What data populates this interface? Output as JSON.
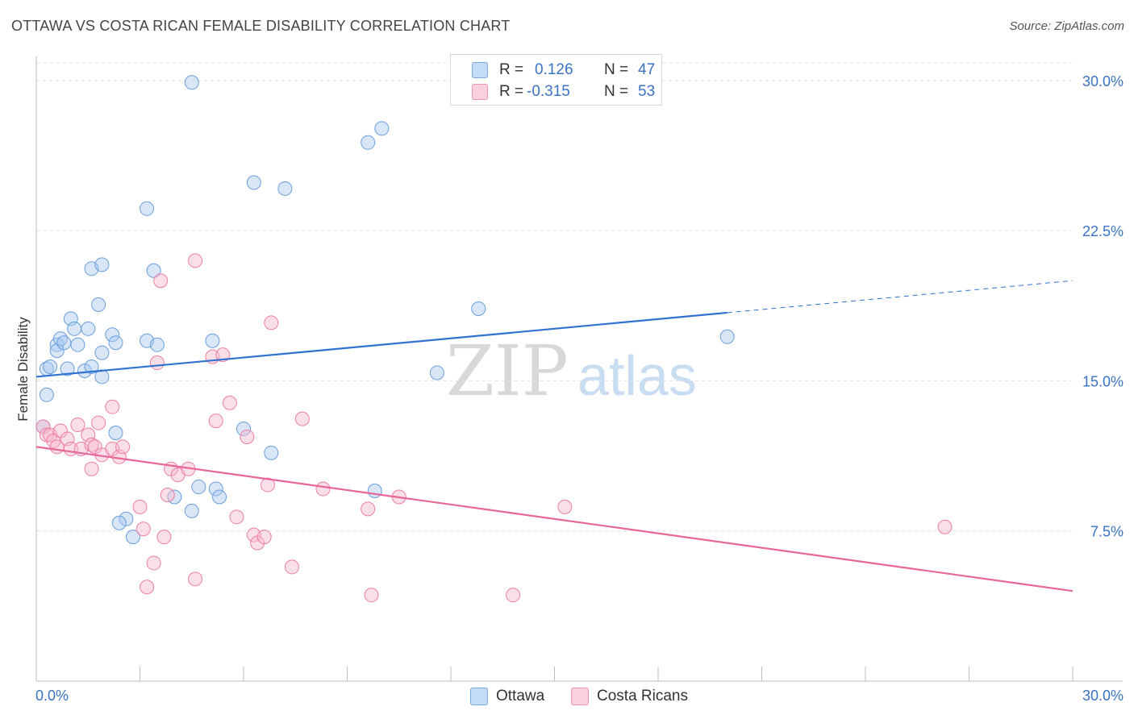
{
  "header": {
    "title": "OTTAWA VS COSTA RICAN FEMALE DISABILITY CORRELATION CHART",
    "source": "Source: ZipAtlas.com"
  },
  "legend": {
    "rows": [
      {
        "r_label": "R =",
        "r_value": "0.126",
        "n_label": "N =",
        "n_value": "47",
        "color": "#a8c8f0"
      },
      {
        "r_label": "R =",
        "r_value": "-0.315",
        "n_label": "N =",
        "n_value": "53",
        "color": "#f7b8cc"
      }
    ]
  },
  "bottom_legend": [
    "Ottawa",
    "Costa Ricans"
  ],
  "watermark": {
    "zip": "ZIP",
    "atlas": "atlas"
  },
  "chart_data": {
    "type": "scatter",
    "ylabel": "Female Disability",
    "xlabel": "",
    "xlim": [
      0,
      30
    ],
    "ylim": [
      0,
      31.2
    ],
    "x_tick_labels": [
      "0.0%",
      "30.0%"
    ],
    "y_ticks": [
      7.5,
      15.0,
      22.5,
      30.0
    ],
    "y_tick_labels": [
      "7.5%",
      "15.0%",
      "22.5%",
      "30.0%"
    ],
    "grid": true,
    "colors": {
      "ottawa": "#6a9fdc",
      "costa": "#ee7fa2",
      "ottawa_line": "#2f72cf",
      "costa_line": "#e8679a",
      "tick_label": "#3a72c4"
    },
    "series": [
      {
        "name": "Ottawa",
        "points": [
          [
            0.2,
            12.7
          ],
          [
            0.3,
            14.3
          ],
          [
            0.3,
            15.6
          ],
          [
            0.4,
            15.7
          ],
          [
            0.6,
            16.8
          ],
          [
            0.6,
            16.5
          ],
          [
            0.7,
            17.1
          ],
          [
            0.8,
            16.9
          ],
          [
            0.9,
            15.6
          ],
          [
            1.0,
            18.1
          ],
          [
            1.1,
            17.6
          ],
          [
            1.2,
            16.8
          ],
          [
            1.4,
            15.5
          ],
          [
            1.5,
            17.6
          ],
          [
            1.6,
            15.7
          ],
          [
            1.6,
            20.6
          ],
          [
            1.9,
            20.8
          ],
          [
            1.8,
            18.8
          ],
          [
            1.9,
            16.4
          ],
          [
            1.9,
            15.2
          ],
          [
            2.2,
            17.3
          ],
          [
            2.3,
            12.4
          ],
          [
            2.3,
            16.9
          ],
          [
            2.6,
            8.1
          ],
          [
            2.8,
            7.2
          ],
          [
            3.2,
            17.0
          ],
          [
            3.2,
            23.6
          ],
          [
            3.4,
            20.5
          ],
          [
            3.5,
            16.8
          ],
          [
            4.0,
            9.2
          ],
          [
            4.5,
            29.9
          ],
          [
            4.5,
            8.5
          ],
          [
            4.7,
            9.7
          ],
          [
            5.1,
            17.0
          ],
          [
            5.2,
            9.6
          ],
          [
            5.3,
            9.2
          ],
          [
            6.0,
            12.6
          ],
          [
            6.3,
            24.9
          ],
          [
            6.8,
            11.4
          ],
          [
            7.2,
            24.6
          ],
          [
            9.6,
            26.9
          ],
          [
            10.0,
            27.6
          ],
          [
            9.8,
            9.5
          ],
          [
            11.6,
            15.4
          ],
          [
            12.8,
            18.6
          ],
          [
            20.0,
            17.2
          ],
          [
            2.4,
            7.9
          ]
        ]
      },
      {
        "name": "Costa Ricans",
        "points": [
          [
            0.2,
            12.7
          ],
          [
            0.3,
            12.3
          ],
          [
            0.4,
            12.3
          ],
          [
            0.5,
            12.0
          ],
          [
            0.6,
            11.7
          ],
          [
            0.7,
            12.5
          ],
          [
            0.9,
            12.1
          ],
          [
            1.0,
            11.6
          ],
          [
            1.2,
            12.8
          ],
          [
            1.3,
            11.6
          ],
          [
            1.5,
            12.3
          ],
          [
            1.6,
            11.8
          ],
          [
            1.6,
            10.6
          ],
          [
            1.7,
            11.7
          ],
          [
            1.8,
            12.9
          ],
          [
            1.9,
            11.3
          ],
          [
            2.2,
            13.7
          ],
          [
            2.2,
            11.6
          ],
          [
            2.4,
            11.2
          ],
          [
            2.5,
            11.7
          ],
          [
            3.0,
            8.7
          ],
          [
            3.1,
            7.6
          ],
          [
            3.2,
            4.7
          ],
          [
            3.4,
            5.9
          ],
          [
            3.5,
            15.9
          ],
          [
            3.6,
            20.0
          ],
          [
            3.7,
            7.2
          ],
          [
            3.8,
            9.3
          ],
          [
            3.9,
            10.6
          ],
          [
            4.1,
            10.3
          ],
          [
            4.4,
            10.6
          ],
          [
            4.6,
            5.1
          ],
          [
            4.6,
            21.0
          ],
          [
            5.1,
            16.2
          ],
          [
            5.2,
            13.0
          ],
          [
            5.4,
            16.3
          ],
          [
            5.6,
            13.9
          ],
          [
            5.8,
            8.2
          ],
          [
            6.1,
            12.2
          ],
          [
            6.3,
            7.3
          ],
          [
            6.4,
            6.9
          ],
          [
            6.6,
            7.2
          ],
          [
            6.7,
            9.8
          ],
          [
            6.8,
            17.9
          ],
          [
            7.4,
            5.7
          ],
          [
            7.7,
            13.1
          ],
          [
            8.3,
            9.6
          ],
          [
            9.6,
            8.6
          ],
          [
            9.7,
            4.3
          ],
          [
            10.5,
            9.2
          ],
          [
            13.8,
            4.3
          ],
          [
            15.3,
            8.7
          ],
          [
            26.3,
            7.7
          ]
        ]
      }
    ],
    "trend_lines": [
      {
        "name": "Ottawa",
        "x": [
          0,
          20.0
        ],
        "y": [
          15.2,
          18.4
        ],
        "dashed_to": [
          30,
          20.0
        ]
      },
      {
        "name": "Costa Ricans",
        "x": [
          0,
          30
        ],
        "y": [
          11.7,
          4.5
        ]
      }
    ]
  }
}
